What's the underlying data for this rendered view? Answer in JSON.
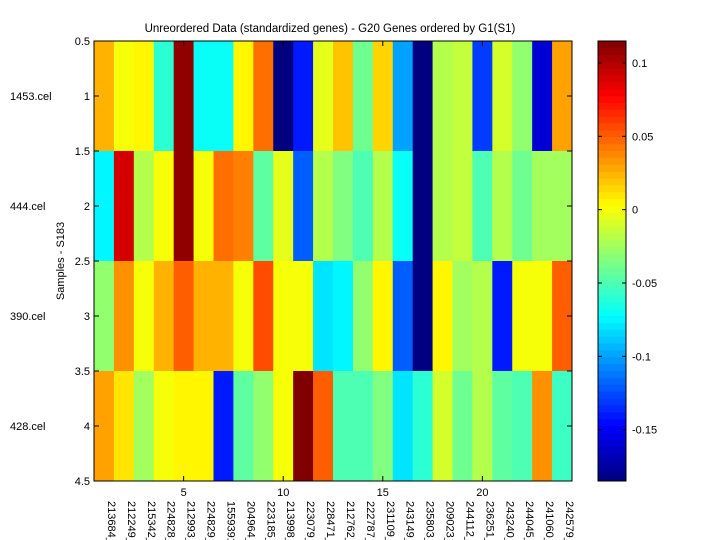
{
  "chart_data": {
    "type": "heatmap",
    "title": "Unreordered Data (standardized genes) - G20 Genes ordered by G1(S1)",
    "ylabel": "Samples - S183",
    "xlabel": "",
    "y_ticks": [
      0.5,
      1,
      1.5,
      2,
      2.5,
      3,
      3.5,
      4,
      4.5
    ],
    "x_ticks": [
      5,
      10,
      15,
      20
    ],
    "ylim": [
      0.5,
      4.5
    ],
    "xlim": [
      0.5,
      24.5
    ],
    "row_labels": [
      "1453.cel",
      "444.cel",
      "390.cel",
      "428.cel"
    ],
    "column_labels": [
      "213684_",
      "212249_",
      "215342_",
      "224828_",
      "212993_",
      "224829_",
      "1559391",
      "204964_",
      "223185_",
      "213998_",
      "223079_",
      "228471_",
      "212762_",
      "222787_",
      "231109_",
      "243149_",
      "235803_",
      "209023_",
      "244112_",
      "236251_",
      "243240_",
      "244045_",
      "241060_",
      "242579_"
    ],
    "colorbar": {
      "min": -0.185,
      "max": 0.115,
      "ticks": [
        0.1,
        0.05,
        0,
        -0.05,
        -0.1,
        -0.15
      ],
      "tick_labels": [
        "0.1",
        "0.05",
        "0",
        "-0.05",
        "-0.1",
        "-0.15"
      ]
    },
    "values": [
      [
        0.025,
        0.0,
        0.005,
        -0.06,
        0.11,
        -0.07,
        -0.07,
        0.005,
        0.045,
        -0.185,
        -0.14,
        -0.005,
        0.02,
        -0.04,
        0.015,
        -0.1,
        -0.185,
        -0.02,
        -0.015,
        -0.13,
        -0.01,
        -0.03,
        -0.16,
        0.03
      ],
      [
        -0.075,
        0.09,
        -0.02,
        0.0,
        0.11,
        0.0,
        0.045,
        0.04,
        -0.045,
        -0.005,
        -0.12,
        -0.02,
        -0.035,
        -0.05,
        -0.02,
        -0.07,
        -0.185,
        -0.02,
        -0.015,
        -0.05,
        -0.02,
        -0.04,
        -0.025,
        -0.025
      ],
      [
        -0.03,
        0.035,
        0.0,
        0.025,
        0.05,
        0.025,
        0.025,
        0.0,
        0.055,
        0.0,
        0.0,
        -0.08,
        -0.075,
        -0.03,
        0.005,
        -0.12,
        -0.185,
        0.005,
        -0.025,
        -0.02,
        -0.14,
        0.0,
        0.0,
        0.05
      ],
      [
        0.03,
        0.01,
        -0.025,
        0.0,
        0.005,
        0.005,
        -0.14,
        -0.045,
        -0.03,
        0.0,
        0.115,
        0.05,
        -0.05,
        -0.05,
        -0.035,
        -0.08,
        -0.06,
        -0.01,
        -0.04,
        -0.02,
        -0.045,
        -0.05,
        0.035,
        -0.055
      ]
    ]
  }
}
